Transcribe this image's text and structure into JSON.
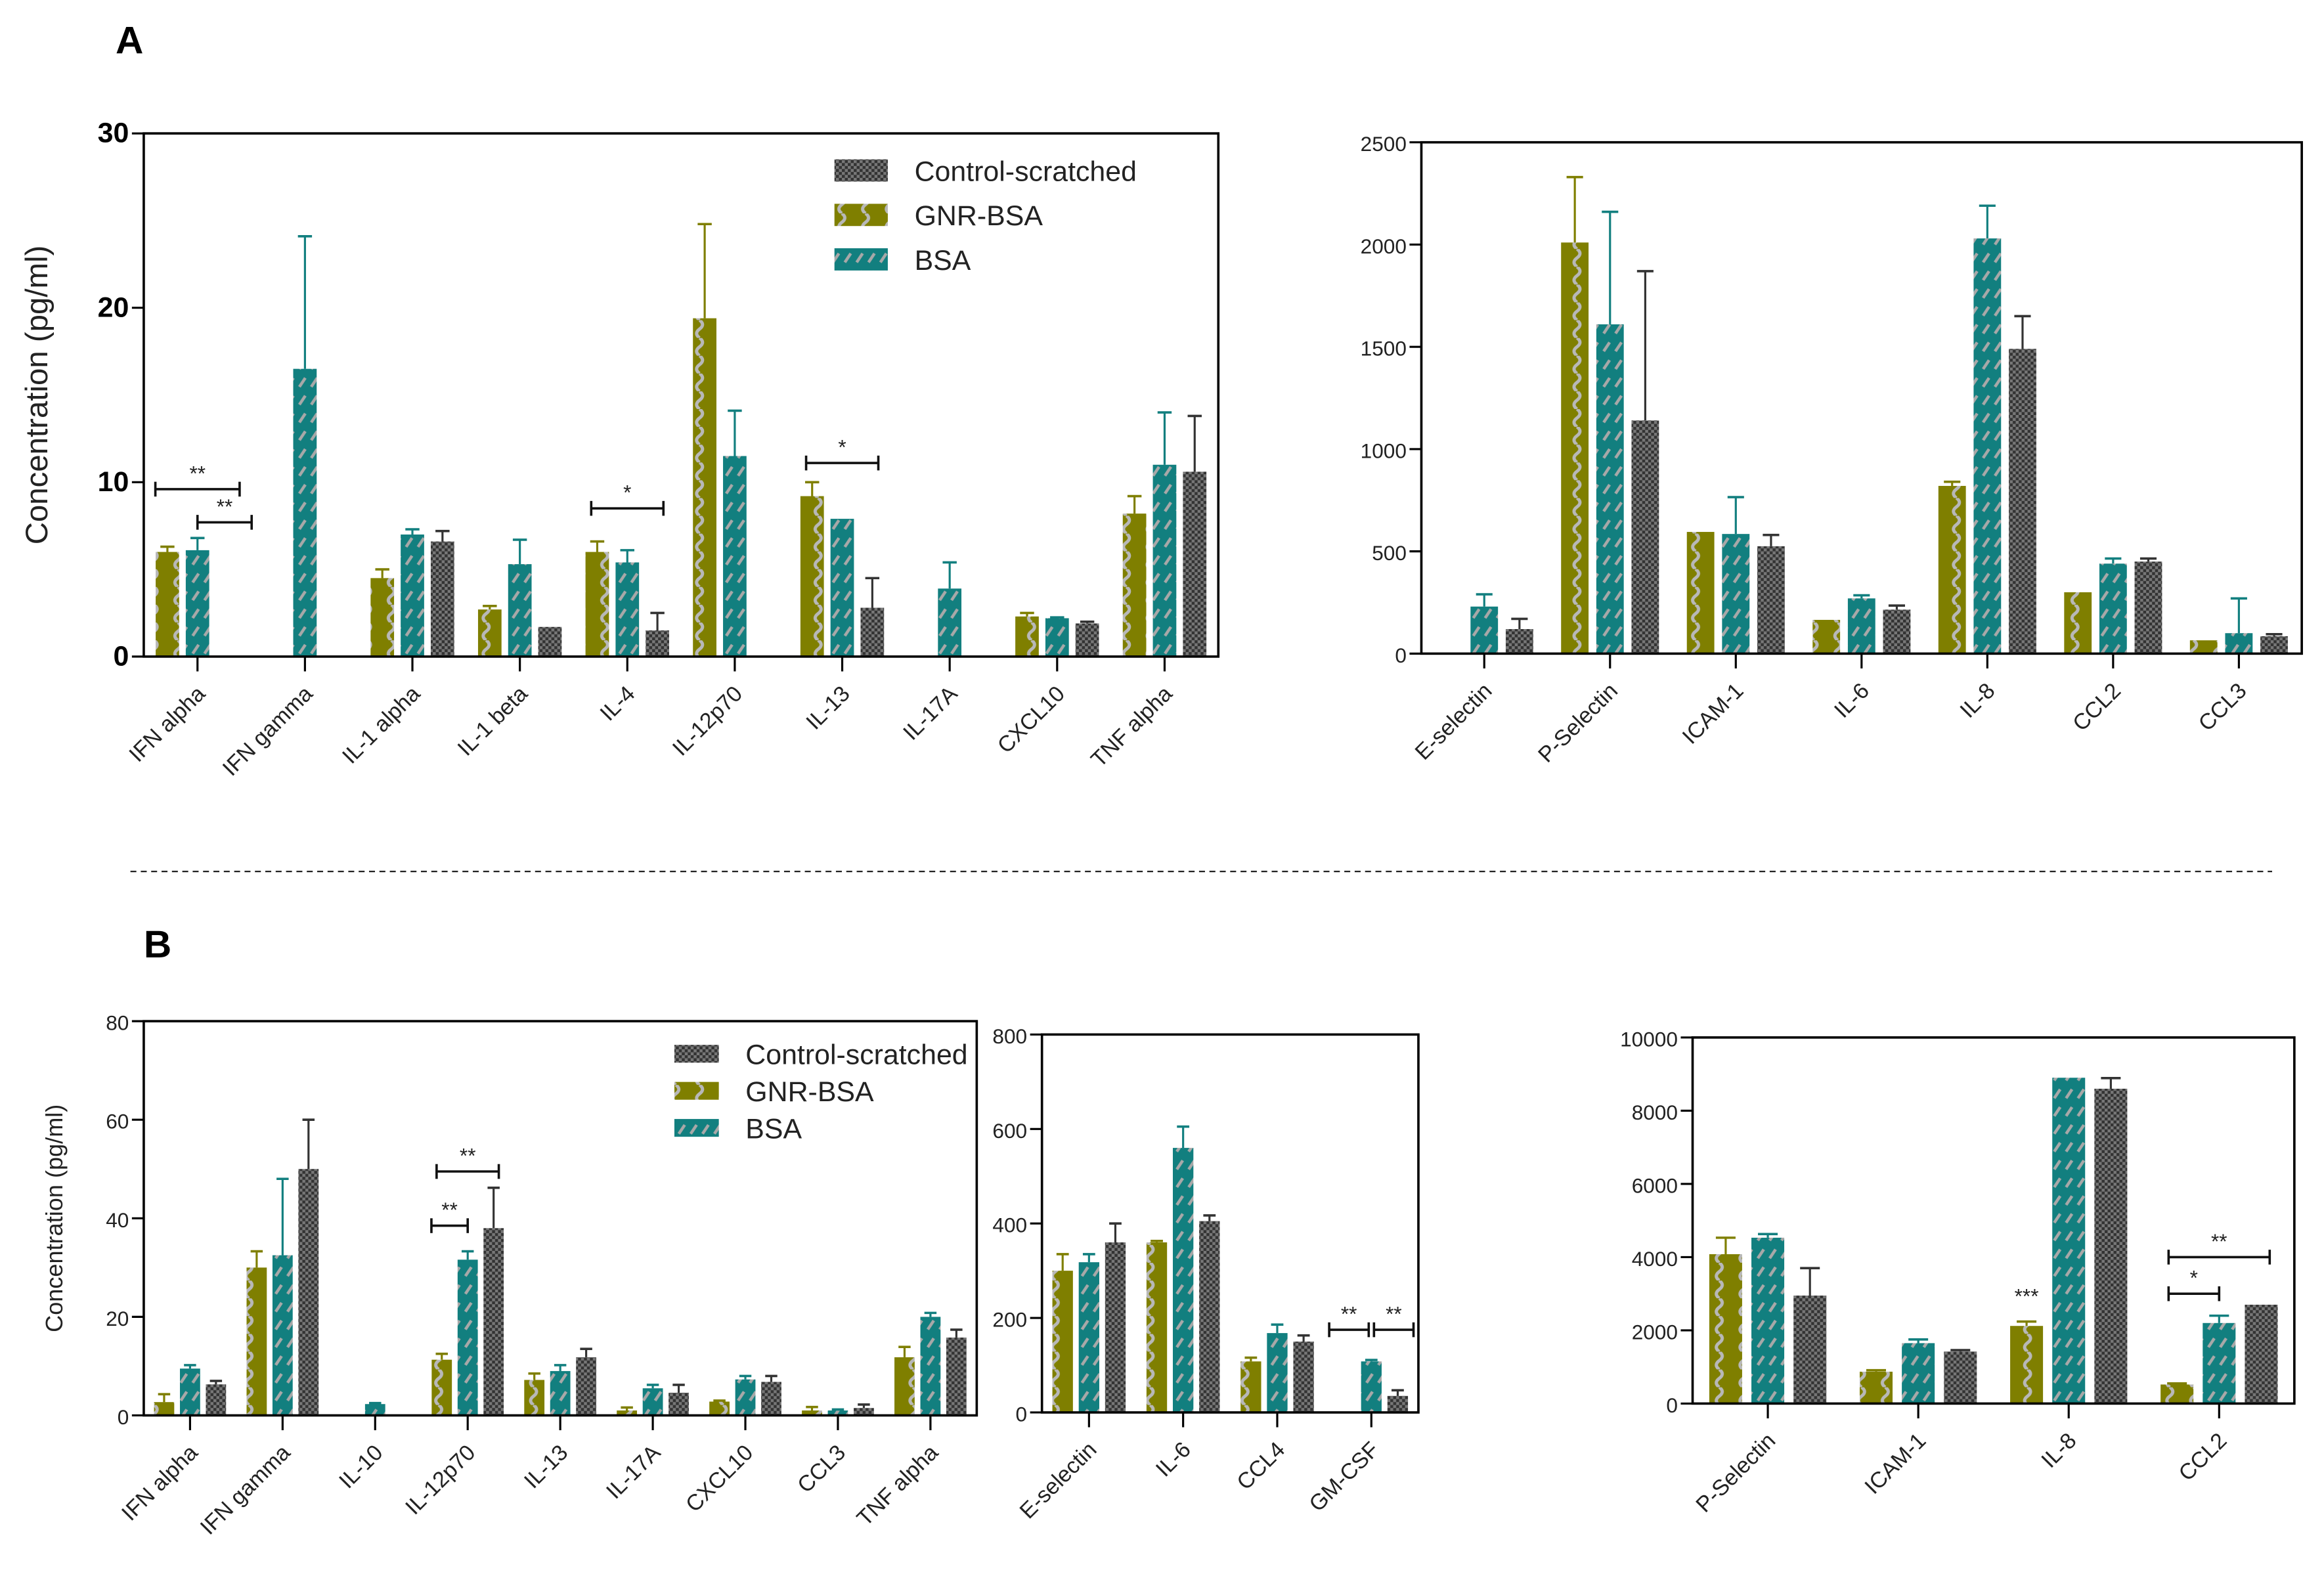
{
  "panels": {
    "a_label": "A",
    "b_label": "B"
  },
  "colors": {
    "gnr_bsa": "#7f7f00",
    "bsa": "#127f7f",
    "control": "#333333"
  },
  "chart_data": [
    {
      "type": "bar",
      "panel": "A",
      "ylabel": "Concentration (pg/ml)",
      "ylim": [
        0,
        30
      ],
      "yticks": [
        0,
        10,
        20,
        30
      ],
      "legend": "top-right",
      "legend_order": [
        2,
        0,
        1
      ],
      "categories": [
        "IFN alpha",
        "IFN gamma",
        "IL-1 alpha",
        "IL-1 beta",
        "IL-4",
        "IL-12p70",
        "IL-13",
        "IL-17A",
        "CXCL10",
        "TNF alpha"
      ],
      "series": [
        {
          "name": "GNR-BSA",
          "values": [
            6.0,
            null,
            4.5,
            2.7,
            6.0,
            19.4,
            9.2,
            null,
            2.3,
            8.2
          ],
          "errors": [
            0.3,
            null,
            0.5,
            0.2,
            0.6,
            5.4,
            0.8,
            null,
            0.2,
            1.0
          ]
        },
        {
          "name": "BSA",
          "values": [
            6.1,
            16.5,
            7.0,
            5.3,
            5.4,
            11.5,
            7.9,
            3.9,
            2.2,
            11.0
          ],
          "errors": [
            0.7,
            7.6,
            0.3,
            1.4,
            0.7,
            2.6,
            0,
            1.5,
            0.05,
            3.0
          ]
        },
        {
          "name": "Control-scratched",
          "values": [
            null,
            null,
            6.6,
            1.7,
            1.5,
            null,
            2.8,
            null,
            1.9,
            10.6
          ],
          "errors": [
            null,
            null,
            0.6,
            0,
            1.0,
            null,
            1.7,
            null,
            0.1,
            3.2
          ]
        }
      ],
      "significance": [
        {
          "category": 0,
          "from_series": -0.4,
          "to_series": 2.4,
          "y": 9.6,
          "label": "**"
        },
        {
          "category": 0,
          "from_series": 1.0,
          "to_series": 2.8,
          "y": 7.7,
          "label": "**"
        },
        {
          "category": 4,
          "from_series": -0.2,
          "to_series": 2.2,
          "y": 8.5,
          "label": "*"
        },
        {
          "category": 6,
          "from_series": -0.2,
          "to_series": 2.2,
          "y": 11.1,
          "label": "*"
        }
      ]
    },
    {
      "type": "bar",
      "panel": "A",
      "ylabel": "",
      "ylim": [
        0,
        2500
      ],
      "yticks": [
        0,
        500,
        1000,
        1500,
        2000,
        2500
      ],
      "categories": [
        "E-selectin",
        "P-Selectin",
        "ICAM-1",
        "IL-6",
        "IL-8",
        "CCL2",
        "CCL3"
      ],
      "series": [
        {
          "name": "GNR-BSA",
          "values": [
            null,
            2010,
            595,
            165,
            820,
            300,
            65
          ],
          "errors": [
            null,
            320,
            0,
            0,
            20,
            0,
            0
          ]
        },
        {
          "name": "BSA",
          "values": [
            230,
            1610,
            585,
            270,
            2030,
            440,
            100
          ],
          "errors": [
            60,
            550,
            180,
            15,
            160,
            25,
            170
          ]
        },
        {
          "name": "Control-scratched",
          "values": [
            120,
            1140,
            525,
            215,
            1490,
            450,
            85
          ],
          "errors": [
            50,
            730,
            55,
            20,
            160,
            15,
            10
          ]
        }
      ],
      "significance": []
    },
    {
      "type": "bar",
      "panel": "B",
      "ylabel": "Concentration (pg/ml)",
      "ylim": [
        0,
        80
      ],
      "yticks": [
        0,
        20,
        40,
        60,
        80
      ],
      "legend": "top-right",
      "legend_order": [
        2,
        0,
        1
      ],
      "categories": [
        "IFN alpha",
        "IFN gamma",
        "IL-10",
        "IL-12p70",
        "IL-13",
        "IL-17A",
        "CXCL10",
        "CCL3",
        "TNF alpha"
      ],
      "series": [
        {
          "name": "GNR-BSA",
          "values": [
            2.7,
            30,
            null,
            11.3,
            7.2,
            1.0,
            2.8,
            1.0,
            11.8
          ],
          "errors": [
            1.6,
            3.3,
            null,
            1.2,
            1.3,
            0.6,
            0.2,
            0.7,
            2.1
          ]
        },
        {
          "name": "BSA",
          "values": [
            9.5,
            32.5,
            2.3,
            31.6,
            9.0,
            5.5,
            7.3,
            1.0,
            20.0
          ],
          "errors": [
            0.7,
            15.5,
            0.2,
            1.7,
            1.2,
            0.7,
            0.7,
            0.2,
            0.8
          ]
        },
        {
          "name": "Control-scratched",
          "values": [
            6.3,
            50,
            null,
            38,
            11.8,
            4.6,
            6.8,
            1.5,
            15.8
          ],
          "errors": [
            0.7,
            10,
            null,
            8.2,
            1.7,
            1.6,
            1.2,
            0.7,
            1.6
          ]
        }
      ],
      "significance": [
        {
          "category": 3,
          "from_series": -0.4,
          "to_series": 1.0,
          "y": 38.5,
          "label": "**"
        },
        {
          "category": 3,
          "from_series": -0.2,
          "to_series": 2.2,
          "y": 49.5,
          "label": "**"
        }
      ]
    },
    {
      "type": "bar",
      "panel": "B",
      "ylabel": "",
      "ylim": [
        0,
        800
      ],
      "yticks": [
        0,
        200,
        400,
        600,
        800
      ],
      "categories": [
        "E-selectin",
        "IL-6",
        "CCL4",
        "GM-CSF"
      ],
      "series": [
        {
          "name": "GNR-BSA",
          "values": [
            300,
            360,
            108,
            null
          ],
          "errors": [
            35,
            3,
            8,
            null
          ]
        },
        {
          "name": "BSA",
          "values": [
            318,
            560,
            168,
            108
          ],
          "errors": [
            17,
            45,
            18,
            3
          ]
        },
        {
          "name": "Control-scratched",
          "values": [
            360,
            405,
            150,
            35
          ],
          "errors": [
            40,
            12,
            13,
            12
          ]
        }
      ],
      "significance": [
        {
          "category": 3,
          "from_series": -0.6,
          "to_series": 0.9,
          "y": 175,
          "label": "**"
        },
        {
          "category": 3,
          "from_series": 1.1,
          "to_series": 2.6,
          "y": 175,
          "label": "**"
        }
      ]
    },
    {
      "type": "bar",
      "panel": "B",
      "ylabel": "",
      "ylim": [
        0,
        10000
      ],
      "yticks": [
        0,
        2000,
        4000,
        6000,
        8000,
        10000
      ],
      "categories": [
        "P-Selectin",
        "ICAM-1",
        "IL-8",
        "CCL2"
      ],
      "series": [
        {
          "name": "GNR-BSA",
          "values": [
            4080,
            870,
            2120,
            520
          ],
          "errors": [
            450,
            40,
            120,
            30
          ]
        },
        {
          "name": "BSA",
          "values": [
            4530,
            1650,
            8900,
            2200
          ],
          "errors": [
            100,
            100,
            0,
            200
          ]
        },
        {
          "name": "Control-scratched",
          "values": [
            2950,
            1420,
            8600,
            2700
          ],
          "errors": [
            750,
            40,
            290,
            0
          ]
        }
      ],
      "significance": [
        {
          "category": 2,
          "from_series": 0,
          "to_series": 0,
          "y": 2500,
          "label": "***",
          "bracket": false
        },
        {
          "category": 3,
          "from_series": -0.2,
          "to_series": 1.0,
          "y": 3000,
          "label": "*"
        },
        {
          "category": 3,
          "from_series": -0.2,
          "to_series": 2.2,
          "y": 4000,
          "label": "**"
        }
      ]
    }
  ]
}
